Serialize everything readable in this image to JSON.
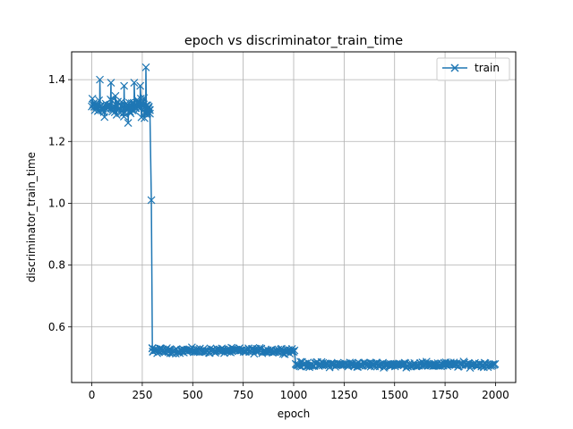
{
  "chart_data": {
    "type": "line",
    "title": "epoch vs discriminator_train_time",
    "xlabel": "epoch",
    "ylabel": "discriminator_train_time",
    "xlim": [
      -100,
      2100
    ],
    "ylim": [
      0.42,
      1.49
    ],
    "x_ticks": [
      0,
      250,
      500,
      750,
      1000,
      1250,
      1500,
      1750,
      2000
    ],
    "y_ticks": [
      0.6,
      0.8,
      1.0,
      1.2,
      1.4
    ],
    "x_tick_labels": [
      "0",
      "250",
      "500",
      "750",
      "1000",
      "1250",
      "1500",
      "1750",
      "2000"
    ],
    "y_tick_labels": [
      "0.6",
      "0.8",
      "1.0",
      "1.2",
      "1.4"
    ],
    "grid": true,
    "legend_position": "top-right",
    "marker": "x",
    "series": [
      {
        "name": "train",
        "color": "#1f77b4",
        "segments": [
          {
            "x_start": 0,
            "x_end": 290,
            "center": 1.31,
            "spread": 0.05,
            "step": 3
          },
          {
            "x_start": 300,
            "x_end": 1005,
            "center": 0.523,
            "spread": 0.012,
            "step": 4
          },
          {
            "x_start": 1010,
            "x_end": 2000,
            "center": 0.478,
            "spread": 0.012,
            "step": 4
          }
        ],
        "points": [
          {
            "x": 40,
            "y": 1.4
          },
          {
            "x": 95,
            "y": 1.39
          },
          {
            "x": 160,
            "y": 1.38
          },
          {
            "x": 180,
            "y": 1.26
          },
          {
            "x": 210,
            "y": 1.39
          },
          {
            "x": 240,
            "y": 1.38
          },
          {
            "x": 268,
            "y": 1.44
          },
          {
            "x": 275,
            "y": 1.29
          },
          {
            "x": 282,
            "y": 1.31
          },
          {
            "x": 288,
            "y": 1.29
          },
          {
            "x": 295,
            "y": 1.01
          },
          {
            "x": 300,
            "y": 0.53
          },
          {
            "x": 302,
            "y": 0.52
          }
        ]
      }
    ]
  }
}
